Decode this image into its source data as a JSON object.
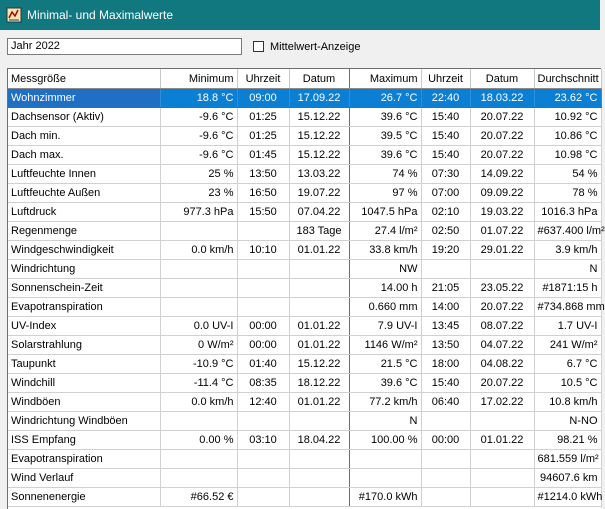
{
  "window": {
    "title": "Minimal- und Maximalwerte"
  },
  "toolbar": {
    "year_value": "Jahr 2022",
    "checkbox_label": "Mittelwert-Anzeige",
    "checkbox_checked": false
  },
  "table": {
    "headers": [
      "Messgröße",
      "Minimum",
      "Uhrzeit",
      "Datum",
      "Maximum",
      "Uhrzeit",
      "Datum",
      "Durchschnitt"
    ],
    "selected_row": 0,
    "rows": [
      [
        "Wohnzimmer",
        "18.8 °C",
        "09:00",
        "17.09.22",
        "26.7 °C",
        "22:40",
        "18.03.22",
        "23.62 °C"
      ],
      [
        "Dachsensor (Aktiv)",
        "-9.6 °C",
        "01:25",
        "15.12.22",
        "39.6 °C",
        "15:40",
        "20.07.22",
        "10.92 °C"
      ],
      [
        "Dach min.",
        "-9.6 °C",
        "01:25",
        "15.12.22",
        "39.5 °C",
        "15:40",
        "20.07.22",
        "10.86 °C"
      ],
      [
        "Dach max.",
        "-9.6 °C",
        "01:45",
        "15.12.22",
        "39.6 °C",
        "15:40",
        "20.07.22",
        "10.98 °C"
      ],
      [
        "Luftfeuchte Innen",
        "25 %",
        "13:50",
        "13.03.22",
        "74 %",
        "07:30",
        "14.09.22",
        "54 %"
      ],
      [
        "Luftfeuchte Außen",
        "23 %",
        "16:50",
        "19.07.22",
        "97 %",
        "07:00",
        "09.09.22",
        "78 %"
      ],
      [
        "Luftdruck",
        "977.3 hPa",
        "15:50",
        "07.04.22",
        "1047.5 hPa",
        "02:10",
        "19.03.22",
        "1016.3 hPa"
      ],
      [
        "Regenmenge",
        "",
        "",
        "183 Tage",
        "27.4 l/m²",
        "02:50",
        "01.07.22",
        "#637.400 l/m²"
      ],
      [
        "Windgeschwindigkeit",
        "0.0 km/h",
        "10:10",
        "01.01.22",
        "33.8 km/h",
        "19:20",
        "29.01.22",
        "3.9 km/h"
      ],
      [
        "Windrichtung",
        "",
        "",
        "",
        "NW",
        "",
        "",
        "N"
      ],
      [
        "Sonnenschein-Zeit",
        "",
        "",
        "",
        "14.00 h",
        "21:05",
        "23.05.22",
        "#1871:15 h"
      ],
      [
        "Evapotranspiration",
        "",
        "",
        "",
        "0.660 mm",
        "14:00",
        "20.07.22",
        "#734.868 mm"
      ],
      [
        "UV-Index",
        "0.0 UV-I",
        "00:00",
        "01.01.22",
        "7.9 UV-I",
        "13:45",
        "08.07.22",
        "1.7 UV-I"
      ],
      [
        "Solarstrahlung",
        "0 W/m²",
        "00:00",
        "01.01.22",
        "1146 W/m²",
        "13:50",
        "04.07.22",
        "241 W/m²"
      ],
      [
        "Taupunkt",
        "-10.9 °C",
        "01:40",
        "15.12.22",
        "21.5 °C",
        "18:00",
        "04.08.22",
        "6.7 °C"
      ],
      [
        "Windchill",
        "-11.4 °C",
        "08:35",
        "18.12.22",
        "39.6 °C",
        "15:40",
        "20.07.22",
        "10.5 °C"
      ],
      [
        "Windböen",
        "0.0 km/h",
        "12:40",
        "01.01.22",
        "77.2 km/h",
        "06:40",
        "17.02.22",
        "10.8 km/h"
      ],
      [
        "Windrichtung Windböen",
        "",
        "",
        "",
        "N",
        "",
        "",
        "N-NO"
      ],
      [
        "ISS Empfang",
        "0.00 %",
        "03:10",
        "18.04.22",
        "100.00 %",
        "00:00",
        "01.01.22",
        "98.21 %"
      ],
      [
        "Evapotranspiration",
        "",
        "",
        "",
        "",
        "",
        "",
        "681.559 l/m²"
      ],
      [
        "Wind Verlauf",
        "",
        "",
        "",
        "",
        "",
        "",
        "94607.6 km"
      ],
      [
        "Sonnenenergie",
        "#66.52 €",
        "",
        "",
        "#170.0 kWh",
        "",
        "",
        "#1214.0 kWh"
      ]
    ]
  },
  "colors": {
    "titlebar": "#117880",
    "selection": "#0a7fd4"
  }
}
